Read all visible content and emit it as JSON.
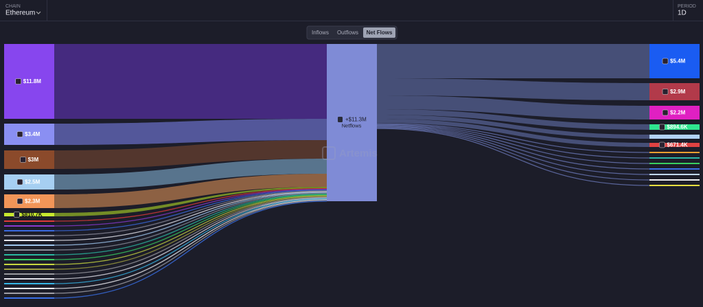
{
  "header": {
    "chain_label": "CHAIN",
    "chain": "Ethereum",
    "period_label": "PERIOD",
    "period": "1D"
  },
  "tabs": [
    "Inflows",
    "Outflows",
    "Net Flows"
  ],
  "active_tab": 2,
  "watermark": "Artemis",
  "center": {
    "value": "+$11.3M",
    "label": "Netflows",
    "color": "#7f8bd6"
  },
  "sources": [
    {
      "label": "$11.8M",
      "color": "#8746ee",
      "flow": "#4a2c88"
    },
    {
      "label": "$3.4M",
      "color": "#8a8ff2",
      "flow": "#5a5ea6"
    },
    {
      "label": "$3M",
      "color": "#8b4a2b",
      "flow": "#5a3a2e"
    },
    {
      "label": "$2.5M",
      "color": "#a6cff2",
      "flow": "#5f7e98"
    },
    {
      "label": "$2.3M",
      "color": "#f29558",
      "flow": "#9a6946"
    },
    {
      "label": "$810.7K",
      "color": "#c7e82f",
      "flow": "#7e9a26"
    },
    {
      "color": "#e03a3a"
    },
    {
      "color": "#8a3ad0"
    },
    {
      "color": "#3a6ae0"
    },
    {
      "color": "#8a8a9a"
    },
    {
      "color": "#e8e8f0"
    },
    {
      "color": "#a0c8f0"
    },
    {
      "color": "#8a8f9a"
    },
    {
      "color": "#2ab8a0"
    },
    {
      "color": "#3ad060"
    },
    {
      "color": "#c8d840"
    },
    {
      "color": "#a0a040"
    },
    {
      "color": "#9a9aa0"
    },
    {
      "color": "#e0e0e8"
    },
    {
      "color": "#38b8e8"
    },
    {
      "color": "#f0f0f4"
    },
    {
      "color": "#a0a0a8"
    },
    {
      "color": "#3a70e8"
    }
  ],
  "targets": [
    {
      "label": "$5.4M",
      "color": "#1a5cf2"
    },
    {
      "label": "$2.9M",
      "color": "#b23a4a"
    },
    {
      "label": "$2.2M",
      "color": "#e020c2"
    },
    {
      "label": "$894.6K",
      "color": "#2fe68f"
    },
    {
      "color": "#b2d2f8"
    },
    {
      "label": "$671.4K",
      "color": "#e04242"
    },
    {
      "color": "#f0a030"
    },
    {
      "color": "#2ab8a8"
    },
    {
      "color": "#3ad060"
    },
    {
      "color": "#3a70e8"
    },
    {
      "color": "#c0d8f0"
    },
    {
      "color": "#f0f0f4"
    },
    {
      "color": "#e8e040"
    }
  ]
}
